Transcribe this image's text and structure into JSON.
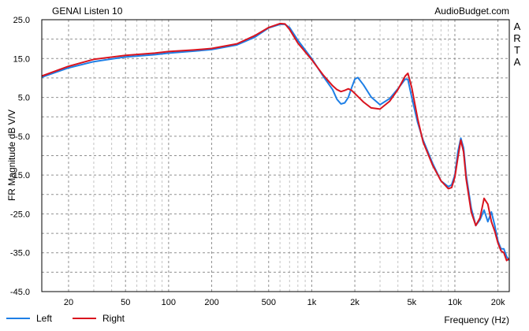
{
  "chart_data": {
    "type": "line",
    "title": "GENAI Listen 10",
    "watermark": "AudioBudget.com",
    "side_label": "ARTA",
    "ylabel": "FR Magnitude dB V/V",
    "xlabel": "Frequency (Hz)",
    "x_scale": "log",
    "xlim": [
      13,
      24000
    ],
    "ylim": [
      -45,
      25
    ],
    "y_ticks": [
      "25.0",
      "15.0",
      "5.0",
      "-5.0",
      "-15.0",
      "-25.0",
      "-35.0",
      "-45.0"
    ],
    "x_ticks": [
      {
        "value": 20,
        "label": "20"
      },
      {
        "value": 50,
        "label": "50"
      },
      {
        "value": 100,
        "label": "100"
      },
      {
        "value": 200,
        "label": "200"
      },
      {
        "value": 500,
        "label": "500"
      },
      {
        "value": 1000,
        "label": "1k"
      },
      {
        "value": 2000,
        "label": "2k"
      },
      {
        "value": 5000,
        "label": "5k"
      },
      {
        "value": 10000,
        "label": "10k"
      },
      {
        "value": 20000,
        "label": "20k"
      }
    ],
    "grid": true,
    "legend_position": "bottom-left",
    "series": [
      {
        "name": "Left",
        "color": "#1e7fe6",
        "points": [
          [
            13,
            10.2
          ],
          [
            20,
            12.6
          ],
          [
            30,
            14.2
          ],
          [
            50,
            15.4
          ],
          [
            80,
            16.0
          ],
          [
            100,
            16.4
          ],
          [
            150,
            16.9
          ],
          [
            200,
            17.3
          ],
          [
            300,
            18.5
          ],
          [
            400,
            20.5
          ],
          [
            500,
            22.9
          ],
          [
            600,
            23.8
          ],
          [
            650,
            23.8
          ],
          [
            700,
            23.0
          ],
          [
            800,
            19.7
          ],
          [
            1000,
            15.0
          ],
          [
            1200,
            10.5
          ],
          [
            1400,
            7.0
          ],
          [
            1500,
            4.5
          ],
          [
            1600,
            3.3
          ],
          [
            1700,
            3.6
          ],
          [
            1800,
            5.0
          ],
          [
            1900,
            7.5
          ],
          [
            2000,
            9.7
          ],
          [
            2100,
            10.1
          ],
          [
            2300,
            8.2
          ],
          [
            2600,
            5.1
          ],
          [
            3000,
            3.1
          ],
          [
            3500,
            4.7
          ],
          [
            4000,
            7.2
          ],
          [
            4500,
            9.7
          ],
          [
            4700,
            9.6
          ],
          [
            5000,
            5.0
          ],
          [
            5500,
            -1.5
          ],
          [
            6000,
            -6.0
          ],
          [
            7000,
            -12.0
          ],
          [
            8000,
            -16.5
          ],
          [
            9000,
            -18.0
          ],
          [
            9500,
            -17.5
          ],
          [
            10000,
            -15.0
          ],
          [
            10500,
            -9.0
          ],
          [
            11000,
            -5.5
          ],
          [
            11500,
            -8.0
          ],
          [
            12000,
            -15.0
          ],
          [
            13000,
            -23.5
          ],
          [
            14000,
            -28.0
          ],
          [
            15000,
            -26.5
          ],
          [
            16000,
            -24.0
          ],
          [
            17000,
            -27.0
          ],
          [
            18000,
            -24.5
          ],
          [
            19000,
            -28.0
          ],
          [
            20000,
            -32.0
          ],
          [
            21000,
            -34.0
          ],
          [
            22000,
            -34.0
          ],
          [
            23000,
            -36.0
          ],
          [
            24000,
            -37.0
          ]
        ]
      },
      {
        "name": "Right",
        "color": "#d9141f",
        "points": [
          [
            13,
            10.5
          ],
          [
            20,
            13.0
          ],
          [
            30,
            14.8
          ],
          [
            50,
            15.8
          ],
          [
            80,
            16.4
          ],
          [
            100,
            16.8
          ],
          [
            150,
            17.2
          ],
          [
            200,
            17.6
          ],
          [
            300,
            18.8
          ],
          [
            400,
            20.9
          ],
          [
            500,
            23.0
          ],
          [
            600,
            24.0
          ],
          [
            650,
            23.9
          ],
          [
            700,
            22.5
          ],
          [
            800,
            19.0
          ],
          [
            1000,
            14.7
          ],
          [
            1200,
            10.8
          ],
          [
            1400,
            8.0
          ],
          [
            1500,
            7.0
          ],
          [
            1600,
            6.5
          ],
          [
            1700,
            6.8
          ],
          [
            1800,
            7.2
          ],
          [
            1900,
            6.8
          ],
          [
            2000,
            6.0
          ],
          [
            2300,
            3.8
          ],
          [
            2600,
            2.3
          ],
          [
            3000,
            2.0
          ],
          [
            3500,
            4.0
          ],
          [
            4000,
            7.0
          ],
          [
            4500,
            10.5
          ],
          [
            4700,
            11.2
          ],
          [
            5000,
            7.5
          ],
          [
            5500,
            -0.5
          ],
          [
            6000,
            -6.5
          ],
          [
            7000,
            -12.5
          ],
          [
            8000,
            -16.5
          ],
          [
            9000,
            -18.5
          ],
          [
            9500,
            -18.2
          ],
          [
            10000,
            -15.5
          ],
          [
            10500,
            -10.5
          ],
          [
            11000,
            -6.0
          ],
          [
            11500,
            -9.0
          ],
          [
            12000,
            -16.0
          ],
          [
            13000,
            -24.5
          ],
          [
            14000,
            -28.0
          ],
          [
            15000,
            -26.0
          ],
          [
            16000,
            -21.0
          ],
          [
            17000,
            -22.5
          ],
          [
            18000,
            -27.0
          ],
          [
            19000,
            -29.5
          ],
          [
            20000,
            -32.5
          ],
          [
            21000,
            -34.5
          ],
          [
            22000,
            -35.0
          ],
          [
            23000,
            -37.0
          ],
          [
            24000,
            -36.5
          ]
        ]
      }
    ]
  }
}
